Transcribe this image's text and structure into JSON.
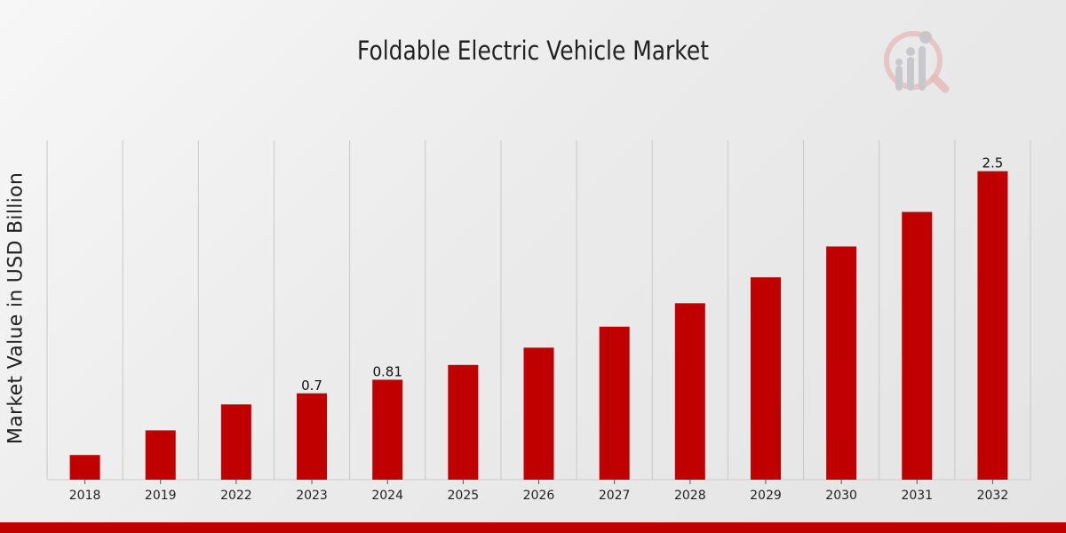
{
  "chart_data": {
    "type": "bar",
    "title": "Foldable Electric Vehicle Market",
    "xlabel": "",
    "ylabel": "Market Value in USD Billion",
    "categories": [
      "2018",
      "2019",
      "2022",
      "2023",
      "2024",
      "2025",
      "2026",
      "2027",
      "2028",
      "2029",
      "2030",
      "2031",
      "2032"
    ],
    "values": [
      0.2,
      0.4,
      0.61,
      0.7,
      0.81,
      0.93,
      1.07,
      1.24,
      1.43,
      1.64,
      1.89,
      2.17,
      2.5
    ],
    "data_labels": {
      "3": "0.7",
      "4": "0.81",
      "12": "2.5"
    },
    "ylim": [
      0,
      2.75
    ],
    "grid": "vertical",
    "colors": {
      "bar": "#c00000",
      "grid": "#c8c8c8",
      "axis": "#cccccc",
      "text": "#222222",
      "accent_bar": "#c00000",
      "logo": "#d9a8a8"
    }
  }
}
